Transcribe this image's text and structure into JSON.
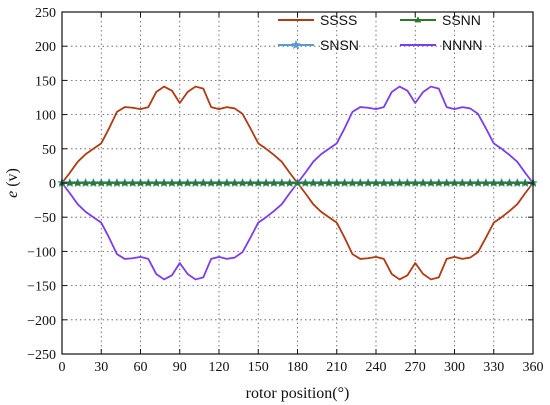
{
  "chart_data": {
    "type": "line",
    "title": "",
    "xlabel": "rotor position(°)",
    "ylabel_italic": "e",
    "ylabel_unit": " (v)",
    "xlim": [
      0,
      360
    ],
    "ylim": [
      -250,
      250
    ],
    "xticks": [
      0,
      30,
      60,
      90,
      120,
      150,
      180,
      210,
      240,
      270,
      300,
      330,
      360
    ],
    "yticks": [
      250,
      200,
      150,
      100,
      50,
      0,
      -50,
      -100,
      -150,
      -200,
      -250
    ],
    "grid": true,
    "legend_position": "top-right",
    "series": [
      {
        "name": "SSSS",
        "color": "#b03a12",
        "marker": "none",
        "x": [
          0,
          6,
          12,
          18,
          24,
          30,
          36,
          42,
          48,
          54,
          60,
          66,
          72,
          78,
          84,
          90,
          96,
          102,
          108,
          114,
          120,
          126,
          132,
          138,
          144,
          150,
          156,
          162,
          168,
          174,
          180,
          186,
          192,
          198,
          204,
          210,
          216,
          222,
          228,
          234,
          240,
          246,
          252,
          258,
          264,
          270,
          276,
          282,
          288,
          294,
          300,
          306,
          312,
          318,
          324,
          330,
          336,
          342,
          348,
          354,
          360
        ],
        "y": [
          0,
          15,
          31,
          42,
          50,
          58,
          80,
          104,
          111,
          110,
          108,
          111,
          133,
          141,
          135,
          117,
          133,
          141,
          138,
          111,
          108,
          111,
          109,
          101,
          80,
          58,
          50,
          41,
          31,
          15,
          0,
          -15,
          -31,
          -42,
          -50,
          -58,
          -80,
          -104,
          -111,
          -110,
          -108,
          -111,
          -133,
          -141,
          -135,
          -117,
          -133,
          -141,
          -138,
          -111,
          -108,
          -111,
          -109,
          -101,
          -80,
          -58,
          -50,
          -41,
          -31,
          -15,
          0
        ]
      },
      {
        "name": "SNSN",
        "color": "#5b9bd5",
        "marker": "star",
        "x": [
          0,
          6,
          12,
          18,
          24,
          30,
          36,
          42,
          48,
          54,
          60,
          66,
          72,
          78,
          84,
          90,
          96,
          102,
          108,
          114,
          120,
          126,
          132,
          138,
          144,
          150,
          156,
          162,
          168,
          174,
          180,
          186,
          192,
          198,
          204,
          210,
          216,
          222,
          228,
          234,
          240,
          246,
          252,
          258,
          264,
          270,
          276,
          282,
          288,
          294,
          300,
          306,
          312,
          318,
          324,
          330,
          336,
          342,
          348,
          354,
          360
        ],
        "y": [
          0,
          0,
          0,
          0,
          0,
          0,
          0,
          0,
          0,
          0,
          0,
          0,
          0,
          0,
          0,
          0,
          0,
          0,
          0,
          0,
          0,
          0,
          0,
          0,
          0,
          0,
          0,
          0,
          0,
          0,
          0,
          0,
          0,
          0,
          0,
          0,
          0,
          0,
          0,
          0,
          0,
          0,
          0,
          0,
          0,
          0,
          0,
          0,
          0,
          0,
          0,
          0,
          0,
          0,
          0,
          0,
          0,
          0,
          0,
          0,
          0
        ]
      },
      {
        "name": "SSNN",
        "color": "#2a7a2a",
        "marker": "triangle",
        "x": [
          0,
          6,
          12,
          18,
          24,
          30,
          36,
          42,
          48,
          54,
          60,
          66,
          72,
          78,
          84,
          90,
          96,
          102,
          108,
          114,
          120,
          126,
          132,
          138,
          144,
          150,
          156,
          162,
          168,
          174,
          180,
          186,
          192,
          198,
          204,
          210,
          216,
          222,
          228,
          234,
          240,
          246,
          252,
          258,
          264,
          270,
          276,
          282,
          288,
          294,
          300,
          306,
          312,
          318,
          324,
          330,
          336,
          342,
          348,
          354,
          360
        ],
        "y": [
          0,
          0,
          0,
          0,
          0,
          0,
          0,
          0,
          0,
          0,
          0,
          0,
          0,
          0,
          0,
          0,
          0,
          0,
          0,
          0,
          0,
          0,
          0,
          0,
          0,
          0,
          0,
          0,
          0,
          0,
          0,
          0,
          0,
          0,
          0,
          0,
          0,
          0,
          0,
          0,
          0,
          0,
          0,
          0,
          0,
          0,
          0,
          0,
          0,
          0,
          0,
          0,
          0,
          0,
          0,
          0,
          0,
          0,
          0,
          0,
          0
        ]
      },
      {
        "name": "NNNN",
        "color": "#7a3df0",
        "marker": "none",
        "x": [
          0,
          6,
          12,
          18,
          24,
          30,
          36,
          42,
          48,
          54,
          60,
          66,
          72,
          78,
          84,
          90,
          96,
          102,
          108,
          114,
          120,
          126,
          132,
          138,
          144,
          150,
          156,
          162,
          168,
          174,
          180,
          186,
          192,
          198,
          204,
          210,
          216,
          222,
          228,
          234,
          240,
          246,
          252,
          258,
          264,
          270,
          276,
          282,
          288,
          294,
          300,
          306,
          312,
          318,
          324,
          330,
          336,
          342,
          348,
          354,
          360
        ],
        "y": [
          0,
          -15,
          -31,
          -42,
          -50,
          -58,
          -80,
          -104,
          -111,
          -110,
          -108,
          -111,
          -133,
          -141,
          -135,
          -117,
          -133,
          -141,
          -138,
          -111,
          -108,
          -111,
          -109,
          -101,
          -80,
          -58,
          -50,
          -41,
          -31,
          -15,
          0,
          15,
          31,
          42,
          50,
          58,
          80,
          104,
          111,
          110,
          108,
          111,
          133,
          141,
          135,
          117,
          133,
          141,
          138,
          111,
          108,
          111,
          109,
          101,
          80,
          58,
          50,
          41,
          31,
          15,
          0
        ]
      }
    ],
    "legend_layout": [
      [
        "SSSS",
        "SSNN"
      ],
      [
        "SNSN",
        "NNNN"
      ]
    ]
  }
}
